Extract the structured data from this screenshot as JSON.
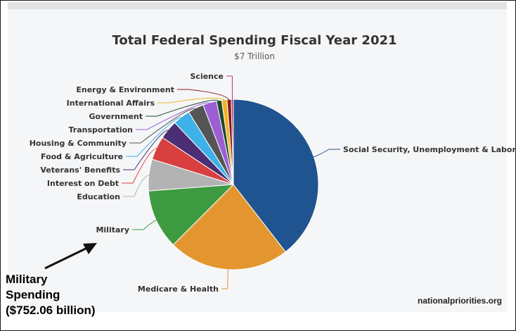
{
  "chart_data": {
    "type": "pie",
    "title": "Total Federal Spending Fiscal Year 2021",
    "subtitle": "$7 Trillion",
    "slices": [
      {
        "label": "Social Security, Unemployment & Labor",
        "value": 39.5,
        "color": "#1f5490"
      },
      {
        "label": "Medicare & Health",
        "value": 23.0,
        "color": "#e3962f"
      },
      {
        "label": "Military",
        "value": 11.3,
        "color": "#3d9a40"
      },
      {
        "label": "Education",
        "value": 6.0,
        "color": "#b3b3b3"
      },
      {
        "label": "Interest on Debt",
        "value": 4.5,
        "color": "#d84040"
      },
      {
        "label": "Veterans' Benefits",
        "value": 3.6,
        "color": "#4b2e73"
      },
      {
        "label": "Food & Agriculture",
        "value": 3.3,
        "color": "#3eb2e8"
      },
      {
        "label": "Housing & Community",
        "value": 3.0,
        "color": "#555555"
      },
      {
        "label": "Transportation",
        "value": 2.6,
        "color": "#9b5fd3"
      },
      {
        "label": "Government",
        "value": 1.0,
        "color": "#1f4a2c"
      },
      {
        "label": "International Affairs",
        "value": 1.0,
        "color": "#f0b424"
      },
      {
        "label": "Energy & Environment",
        "value": 0.8,
        "color": "#8b1a1a"
      },
      {
        "label": "Science",
        "value": 0.4,
        "color": "#b23a70"
      }
    ]
  },
  "annotation": {
    "lines": [
      "Military",
      "Spending",
      "($752.06 billion)"
    ]
  },
  "credit": "nationalpriorities.org"
}
